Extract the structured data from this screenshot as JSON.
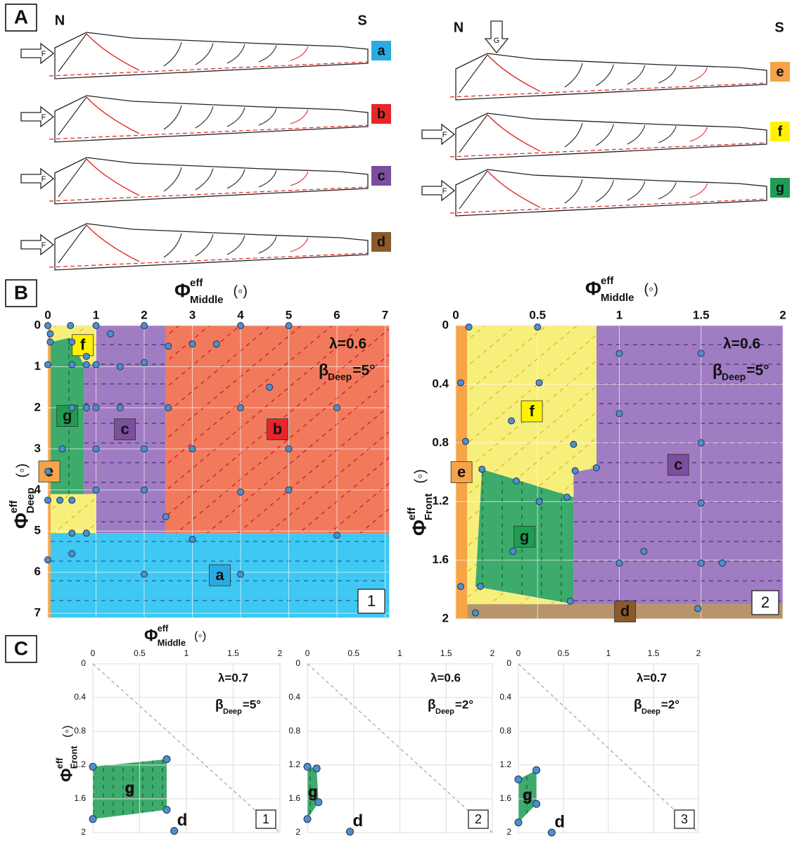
{
  "panel_labels": [
    "A",
    "B",
    "C"
  ],
  "panel_a": {
    "north": "N",
    "south": "S",
    "sketches": [
      {
        "letter": "a",
        "color": "#29abe2",
        "push": "F",
        "push_from": "left"
      },
      {
        "letter": "b",
        "color": "#e8262a",
        "push": "F",
        "push_from": "left"
      },
      {
        "letter": "c",
        "color": "#7b4e9e",
        "push": "F",
        "push_from": "left"
      },
      {
        "letter": "d",
        "color": "#8b5a2b",
        "push": "F",
        "push_from": "left"
      },
      {
        "letter": "e",
        "color": "#f7a34a",
        "push": "G",
        "push_from": "top"
      },
      {
        "letter": "f",
        "color": "#fff200",
        "push": "F",
        "push_from": "left"
      },
      {
        "letter": "g",
        "color": "#1f9c52",
        "push": "F",
        "push_from": "left"
      }
    ]
  },
  "chart_data": [
    {
      "type": "scatter",
      "x_label": {
        "symbol": "Φ",
        "superscript": "eff",
        "subscript": "Middle",
        "unit": "(◦)"
      },
      "y_label": {
        "symbol": "Φ",
        "superscript": "eff",
        "subscript": "Deep",
        "unit": "(◦)"
      },
      "annotation": {
        "lambda": "λ=0.6",
        "beta": "β",
        "beta_subscript": "Deep",
        "beta_value": "=5°"
      },
      "panel_number": "1",
      "xlim": [
        0,
        7.08
      ],
      "ylim": [
        0,
        7.1
      ],
      "y_inverted": true,
      "grid": true,
      "xticks": [
        0,
        1,
        2,
        3,
        4,
        5,
        6,
        7
      ],
      "yticks": [
        0,
        1,
        2,
        3,
        4,
        5,
        6,
        7
      ],
      "regions": [
        {
          "label": "e",
          "color": "#f6a445",
          "label_color": "#f7a34a",
          "polygons": [
            [
              [
                0,
                0
              ],
              [
                0.06,
                0
              ],
              [
                0.06,
                7.1
              ],
              [
                0,
                7.1
              ]
            ]
          ]
        },
        {
          "label": "a",
          "color": "#3ec8f2",
          "label_color": "#29abe2",
          "hatch": "horizontal",
          "hatch_color": "#1e5aa0",
          "polygons": [
            [
              [
                0.06,
                5.05
              ],
              [
                7.08,
                5.05
              ],
              [
                7.08,
                7.1
              ],
              [
                0.06,
                7.1
              ]
            ]
          ]
        },
        {
          "label": "b",
          "color": "#f27a5c",
          "label_color": "#e8262a",
          "hatch": "diagonal",
          "hatch_color": "#c8102e",
          "polygons": [
            [
              [
                2.45,
                0
              ],
              [
                7.08,
                0
              ],
              [
                7.08,
                5.05
              ],
              [
                2.45,
                5.05
              ]
            ]
          ]
        },
        {
          "label": "c",
          "color": "#a07cc2",
          "label_color": "#7b4e9e",
          "hatch": "horizontal",
          "hatch_color": "#4b2c7a",
          "polygons": [
            [
              [
                1,
                0
              ],
              [
                2.45,
                0
              ],
              [
                2.45,
                5.05
              ],
              [
                1,
                5.05
              ],
              [
                1,
                4.1
              ],
              [
                0.75,
                4.1
              ],
              [
                0.75,
                0.95
              ],
              [
                1,
                0.95
              ]
            ]
          ]
        },
        {
          "label": "f",
          "color": "#f7ef7c",
          "label_color": "#fff200",
          "hatch": "diagonal",
          "hatch_color": "#e0b020",
          "polygons": [
            [
              [
                0.45,
                0
              ],
              [
                1,
                0
              ],
              [
                1,
                0.95
              ],
              [
                0.75,
                0.95
              ],
              [
                0.45,
                0.3
              ]
            ],
            [
              [
                0.06,
                0
              ],
              [
                0.45,
                0
              ],
              [
                0.45,
                0.3
              ],
              [
                0.06,
                0.4
              ]
            ],
            [
              [
                0.06,
                4.1
              ],
              [
                1,
                4.1
              ],
              [
                1,
                5.05
              ],
              [
                0.06,
                5.05
              ]
            ]
          ]
        },
        {
          "label": "g",
          "color": "#3dab6c",
          "label_color": "#1f9c52",
          "hatch": "vertical",
          "hatch_color": "#1a5c34",
          "polygons": [
            [
              [
                0.06,
                0.4
              ],
              [
                0.45,
                0.3
              ],
              [
                0.75,
                0.95
              ],
              [
                0.75,
                4.1
              ],
              [
                0.06,
                4.1
              ]
            ]
          ]
        }
      ],
      "series": [
        {
          "color": "#4f8fcc",
          "x": [
            0,
            0.47,
            1,
            2,
            4,
            5,
            0.05,
            1.3,
            0.05,
            0.5,
            2.5,
            3,
            3.5,
            0.8,
            0,
            0.5,
            0.8,
            1,
            1.5,
            2,
            4.6,
            0.5,
            0.8,
            1,
            1.5,
            2.5,
            4,
            6,
            0.3,
            1,
            2,
            3,
            5,
            0,
            1,
            2,
            4,
            5,
            0,
            0.25,
            0.5,
            2.45,
            0.5,
            0.8,
            3,
            6,
            0,
            0.5,
            2,
            4
          ],
          "values": [
            0,
            0,
            0,
            0,
            0,
            0,
            0.2,
            0.2,
            0.4,
            0.4,
            0.5,
            0.45,
            0.45,
            0.75,
            0.95,
            0.95,
            0.95,
            0.95,
            1,
            0.9,
            1.5,
            2,
            2,
            2,
            2,
            2,
            2,
            2,
            3,
            3,
            3,
            3,
            3,
            3.55,
            4,
            4,
            4.05,
            4,
            4.25,
            4.25,
            4.25,
            4.65,
            5.05,
            5.05,
            5.2,
            5.1,
            5.7,
            5.55,
            6.05,
            6.05
          ]
        }
      ]
    },
    {
      "type": "scatter",
      "x_label": {
        "symbol": "Φ",
        "superscript": "eff",
        "subscript": "Middle",
        "unit": "(◦)"
      },
      "y_label": {
        "symbol": "Φ",
        "superscript": "eff",
        "subscript": "Front",
        "unit": "(◦)"
      },
      "annotation": {
        "lambda": "λ=0.6",
        "beta": "β",
        "beta_subscript": "Deep",
        "beta_value": "=5°"
      },
      "panel_number": "2",
      "xlim": [
        0,
        2
      ],
      "ylim": [
        0,
        2
      ],
      "y_inverted": true,
      "grid": true,
      "xticks": [
        0,
        0.5,
        1,
        1.5,
        2
      ],
      "yticks": [
        0,
        0.4,
        0.8,
        1.2,
        1.6,
        2
      ],
      "regions": [
        {
          "label": "e",
          "color": "#f6a445",
          "label_color": "#f7a34a",
          "polygons": [
            [
              [
                0,
                0
              ],
              [
                0.07,
                0
              ],
              [
                0.07,
                2
              ],
              [
                0,
                2
              ]
            ]
          ]
        },
        {
          "label": "d",
          "color": "#b8946c",
          "label_color": "#8b5a2b",
          "hatch": "horizontal",
          "hatch_color": "#5a3a1a",
          "polygons": [
            [
              [
                0.07,
                1.9
              ],
              [
                2,
                1.9
              ],
              [
                2,
                2
              ],
              [
                0.07,
                2
              ]
            ]
          ]
        },
        {
          "label": "c",
          "color": "#a07cc2",
          "label_color": "#7b4e9e",
          "hatch": "horizontal",
          "hatch_color": "#4b2c7a",
          "polygons": [
            [
              [
                0.86,
                0
              ],
              [
                2,
                0
              ],
              [
                2,
                1.9
              ],
              [
                0.72,
                1.9
              ],
              [
                0.72,
                1.0
              ],
              [
                0.86,
                0.97
              ]
            ]
          ]
        },
        {
          "label": "f",
          "color": "#f7ef7c",
          "label_color": "#fff200",
          "hatch": "diagonal",
          "hatch_color": "#e0b020",
          "polygons": [
            [
              [
                0.07,
                0
              ],
              [
                0.86,
                0
              ],
              [
                0.86,
                0.97
              ],
              [
                0.72,
                1.0
              ],
              [
                0.72,
                1.17
              ],
              [
                0.16,
                0.98
              ],
              [
                0.07,
                0.98
              ]
            ],
            [
              [
                0.07,
                0.98
              ],
              [
                0.16,
                0.98
              ],
              [
                0.12,
                1.78
              ],
              [
                0.7,
                1.9
              ],
              [
                0.07,
                1.9
              ]
            ]
          ]
        },
        {
          "label": "g",
          "color": "#3dab6c",
          "label_color": "#1f9c52",
          "hatch": "vertical",
          "hatch_color": "#1a5c34",
          "polygons": [
            [
              [
                0.16,
                0.98
              ],
              [
                0.72,
                1.17
              ],
              [
                0.72,
                1.9
              ],
              [
                0.12,
                1.78
              ]
            ]
          ]
        }
      ],
      "series": [
        {
          "color": "#4f8fcc",
          "x": [
            0.08,
            0.5,
            1,
            1.5,
            0.03,
            0.51,
            1,
            0.34,
            0.06,
            0.72,
            1.5,
            0.16,
            0.73,
            0.86,
            0.37,
            0.68,
            0.51,
            1.5,
            0.35,
            1.15,
            1,
            1.5,
            1.63,
            0.03,
            0.15,
            0.7,
            0.12,
            1.48
          ],
          "values": [
            0.01,
            0.01,
            0.19,
            0.19,
            0.39,
            0.39,
            0.6,
            0.65,
            0.79,
            0.81,
            0.8,
            0.98,
            0.99,
            0.97,
            1.06,
            1.17,
            1.2,
            1.21,
            1.54,
            1.54,
            1.62,
            1.62,
            1.62,
            1.78,
            1.78,
            1.88,
            1.96,
            1.93
          ]
        }
      ]
    },
    {
      "type": "scatter",
      "x_label": {
        "symbol": "Φ",
        "superscript": "eff",
        "subscript": "Middle",
        "unit": "(◦)"
      },
      "y_label": {
        "symbol": "Φ",
        "superscript": "eff",
        "subscript": "Front",
        "unit": "(◦)"
      },
      "annotation": {
        "lambda": "λ=0.7",
        "beta": "β",
        "beta_subscript": "Deep",
        "beta_value": "=5°"
      },
      "panel_number": "1",
      "xlim": [
        0,
        2
      ],
      "ylim": [
        0,
        2
      ],
      "y_inverted": true,
      "grid": true,
      "diagonal": true,
      "xticks": [
        0,
        0.5,
        1,
        1.5,
        2
      ],
      "yticks": [
        0,
        0.4,
        0.8,
        1.2,
        1.6,
        2
      ],
      "regions": [
        {
          "label": "g",
          "color": "#3dab6c",
          "hatch": "vertical",
          "hatch_color": "#1a5c34",
          "polygons": [
            [
              [
                0,
                1.22
              ],
              [
                0.79,
                1.13
              ],
              [
                0.79,
                1.73
              ],
              [
                0,
                1.84
              ]
            ]
          ]
        }
      ],
      "series": [
        {
          "color": "#4f8fcc",
          "x": [
            0,
            0.79,
            0,
            0.79,
            0.87
          ],
          "values": [
            1.22,
            1.13,
            1.84,
            1.73,
            1.98
          ],
          "point_labels": [
            null,
            null,
            null,
            null,
            "d"
          ]
        }
      ]
    },
    {
      "type": "scatter",
      "annotation": {
        "lambda": "λ=0.6",
        "beta": "β",
        "beta_subscript": "Deep",
        "beta_value": "=2°"
      },
      "panel_number": "2",
      "xlim": [
        0,
        2
      ],
      "ylim": [
        0,
        2
      ],
      "y_inverted": true,
      "grid": true,
      "diagonal": true,
      "xticks": [
        0,
        0.5,
        1,
        1.5,
        2
      ],
      "yticks": [
        0,
        0.4,
        0.8,
        1.2,
        1.6,
        2
      ],
      "regions": [
        {
          "label": "g",
          "color": "#3dab6c",
          "hatch": "vertical",
          "hatch_color": "#1a5c34",
          "polygons": [
            [
              [
                0,
                1.22
              ],
              [
                0.1,
                1.24
              ],
              [
                0.12,
                1.64
              ],
              [
                0,
                1.84
              ]
            ]
          ]
        }
      ],
      "series": [
        {
          "color": "#4f8fcc",
          "x": [
            0,
            0.1,
            0.12,
            0,
            0.46
          ],
          "values": [
            1.22,
            1.24,
            1.64,
            1.84,
            1.99
          ],
          "point_labels": [
            null,
            null,
            null,
            null,
            "d"
          ]
        }
      ]
    },
    {
      "type": "scatter",
      "annotation": {
        "lambda": "λ=0.7",
        "beta": "β",
        "beta_subscript": "Deep",
        "beta_value": "=2°"
      },
      "panel_number": "3",
      "xlim": [
        0,
        2
      ],
      "ylim": [
        0,
        2
      ],
      "y_inverted": true,
      "grid": true,
      "diagonal": true,
      "xticks": [
        0,
        0.5,
        1,
        1.5,
        2
      ],
      "yticks": [
        0,
        0.4,
        0.8,
        1.2,
        1.6,
        2
      ],
      "regions": [
        {
          "label": "g",
          "color": "#3dab6c",
          "hatch": "vertical",
          "hatch_color": "#1a5c34",
          "polygons": [
            [
              [
                0,
                1.37
              ],
              [
                0.2,
                1.26
              ],
              [
                0.2,
                1.66
              ],
              [
                0,
                1.88
              ]
            ]
          ]
        }
      ],
      "series": [
        {
          "color": "#4f8fcc",
          "x": [
            0,
            0.2,
            0.2,
            0,
            0.37
          ],
          "values": [
            1.37,
            1.26,
            1.66,
            1.88,
            2.0
          ],
          "point_labels": [
            null,
            null,
            null,
            null,
            "d"
          ]
        }
      ]
    }
  ]
}
